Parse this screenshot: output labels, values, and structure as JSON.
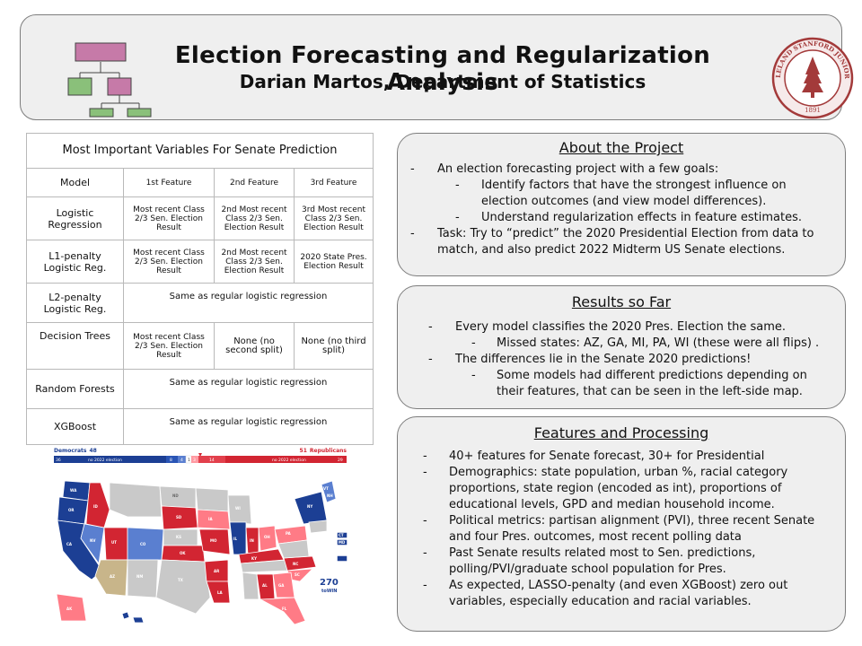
{
  "header": {
    "title": "Election Forecasting and Regularization Analysis",
    "subtitle": "Darian Martos, Department of Statistics",
    "seal_text": "LELAND STANFORD JUNIOR UNIVERSITY",
    "seal_year": "1891"
  },
  "table": {
    "title": "Most Important Variables For Senate Prediction",
    "headers": [
      "Model",
      "1st Feature",
      "2nd Feature",
      "3rd Feature"
    ],
    "rows": [
      {
        "model": "Logistic Regression",
        "f1": "Most recent Class 2/3 Sen. Election Result",
        "f2": "2nd Most recent Class 2/3 Sen. Election Result",
        "f3": "3rd Most recent Class 2/3 Sen. Election Result"
      },
      {
        "model": "L1-penalty Logistic Reg.",
        "f1": "Most recent Class 2/3 Sen. Election Result",
        "f2": "2nd Most recent Class 2/3 Sen. Election Result",
        "f3": "2020 State Pres. Election Result"
      },
      {
        "model": "L2-penalty Logistic Reg.",
        "span": "Same as regular logistic regression"
      },
      {
        "model": "Decision Trees",
        "f1": "Most recent Class 2/3 Sen. Election Result",
        "f2": "None (no second split)",
        "f3": "None (no third split)"
      },
      {
        "model": "Random Forests",
        "span": "Same as regular logistic regression"
      },
      {
        "model": "XGBoost",
        "span": "Same as regular logistic regression"
      }
    ]
  },
  "map": {
    "dem_label": "Democrats",
    "dem_count": "48",
    "rep_label": "Republicans",
    "rep_count": "51",
    "bar_values": [
      "36",
      "no 2022 election",
      "8",
      "4",
      "1",
      "3",
      "14",
      "no 2022 election",
      "29"
    ],
    "logo_number": "270",
    "logo_text": "toWIN",
    "colors": {
      "safe_d": "#1c3f94",
      "likely_d": "#5a7fd0",
      "tossup": "#c8b58a",
      "likely_r": "#ff7b86",
      "safe_r": "#d22532",
      "no_election": "#c9c9c9"
    },
    "state_labels": [
      "WA",
      "OR",
      "CA",
      "NV",
      "ID",
      "UT",
      "AZ",
      "CO",
      "NM",
      "SD",
      "KS",
      "OK",
      "TX",
      "LA",
      "AR",
      "MO",
      "IA",
      "WI",
      "IL",
      "IN",
      "OH",
      "KY",
      "NC",
      "SC",
      "GA",
      "FL",
      "AL",
      "PA",
      "NY",
      "VT",
      "NH",
      "CT",
      "MD",
      "HI",
      "AK",
      "ND"
    ]
  },
  "about": {
    "heading": "About the Project",
    "items": [
      {
        "level": 1,
        "text": "An election forecasting project with a few goals:"
      },
      {
        "level": 2,
        "text": "Identify factors that have the strongest influence on election outcomes (and view model differences)."
      },
      {
        "level": 2,
        "text": "Understand regularization effects in feature estimates."
      },
      {
        "level": 1,
        "text": "Task: Try to “predict” the 2020 Presidential Election from data to match, and also predict 2022 Midterm US Senate elections."
      }
    ]
  },
  "results": {
    "heading": "Results so Far",
    "items": [
      {
        "level": 1,
        "text": "Every model classifies the 2020 Pres. Election the same."
      },
      {
        "level": 2,
        "text": "Missed states: AZ, GA, MI, PA, WI (these were all flips) ."
      },
      {
        "level": 1,
        "text": "The differences lie in the Senate 2020 predictions!"
      },
      {
        "level": 2,
        "text": "Some models had different predictions depending on their features, that can be seen in the left-side map."
      }
    ]
  },
  "features": {
    "heading": "Features and Processing",
    "items": [
      {
        "level": 1,
        "text": "40+ features for Senate forecast, 30+ for Presidential"
      },
      {
        "level": 1,
        "text": "Demographics: state population, urban %, racial category proportions, state region (encoded as int), proportions of educational levels, GPD and median household income."
      },
      {
        "level": 1,
        "text": "Political metrics: partisan alignment (PVI), three recent Senate and four Pres. outcomes, most recent polling data"
      },
      {
        "level": 1,
        "text": "Past Senate results related most to Sen. predictions, polling/PVI/graduate school population for Pres."
      },
      {
        "level": 1,
        "text": "As expected, LASSO-penalty (and even XGBoost) zero out variables, especially education and racial variables."
      }
    ]
  }
}
